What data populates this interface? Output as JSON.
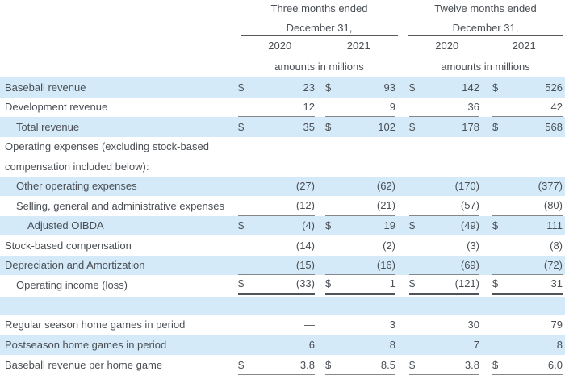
{
  "currency_symbol": "$",
  "colors": {
    "row_highlight": "#d4eaf8",
    "text": "#4a4f55",
    "thin_rule": "#85888b",
    "strong_rule": "#4d545b",
    "header_rule": "#55585c"
  },
  "header": {
    "three_months": {
      "title": "Three months ended",
      "subtitle": "December 31,",
      "years": [
        "2020",
        "2021"
      ],
      "units": "amounts in millions"
    },
    "twelve_months": {
      "title": "Twelve months ended",
      "subtitle": "December 31,",
      "years": [
        "2020",
        "2021"
      ],
      "units": "amounts in millions"
    }
  },
  "table": {
    "rows": [
      {
        "label": "Baseball revenue",
        "indent": 0,
        "bg": "blue",
        "dollar": true,
        "values": [
          "23",
          "93",
          "142",
          "526"
        ],
        "underline": "none"
      },
      {
        "label": "Development revenue",
        "indent": 0,
        "bg": "white",
        "dollar": false,
        "values": [
          "12",
          "9",
          "36",
          "42"
        ],
        "underline": "thin"
      },
      {
        "label": "Total revenue",
        "indent": 1,
        "bg": "blue",
        "dollar": true,
        "values": [
          "35",
          "102",
          "178",
          "568"
        ],
        "underline": "none"
      },
      {
        "label": "Operating expenses (excluding stock-based",
        "indent": 0,
        "bg": "white",
        "dollar": false,
        "values": [
          "",
          "",
          "",
          ""
        ],
        "underline": "none"
      },
      {
        "label": "compensation included below):",
        "indent": 0,
        "bg": "white",
        "dollar": false,
        "values": [
          "",
          "",
          "",
          ""
        ],
        "underline": "none"
      },
      {
        "label": "Other operating expenses",
        "indent": 1,
        "bg": "blue",
        "dollar": false,
        "values": [
          "(27)",
          "(62)",
          "(170)",
          "(377)"
        ],
        "underline": "none"
      },
      {
        "label": "Selling, general and administrative expenses",
        "indent": 1,
        "bg": "white",
        "dollar": false,
        "values": [
          "(12)",
          "(21)",
          "(57)",
          "(80)"
        ],
        "underline": "thin"
      },
      {
        "label": "Adjusted OIBDA",
        "indent": 2,
        "bg": "blue",
        "dollar": true,
        "values": [
          "(4)",
          "19",
          "(49)",
          "111"
        ],
        "underline": "none"
      },
      {
        "label": "Stock-based compensation",
        "indent": 0,
        "bg": "white",
        "dollar": false,
        "values": [
          "(14)",
          "(2)",
          "(3)",
          "(8)"
        ],
        "underline": "none"
      },
      {
        "label": "Depreciation and Amortization",
        "indent": 0,
        "bg": "blue",
        "dollar": false,
        "values": [
          "(15)",
          "(16)",
          "(69)",
          "(72)"
        ],
        "underline": "thin"
      },
      {
        "label": "Operating income (loss)",
        "indent": 1,
        "bg": "white",
        "dollar": true,
        "values": [
          "(33)",
          "1",
          "(121)",
          "31"
        ],
        "underline": "thick"
      },
      {
        "label": "",
        "indent": 0,
        "bg": "blue",
        "dollar": false,
        "values": [
          "",
          "",
          "",
          ""
        ],
        "underline": "none",
        "blank": true
      },
      {
        "label": "Regular season home games in period",
        "indent": 0,
        "bg": "white",
        "dollar": false,
        "values": [
          "—",
          "3",
          "30",
          "79"
        ],
        "underline": "none",
        "tall": true
      },
      {
        "label": "Postseason home games in period",
        "indent": 0,
        "bg": "blue",
        "dollar": false,
        "values": [
          "6",
          "8",
          "7",
          "8"
        ],
        "underline": "none",
        "tall": true
      },
      {
        "label": "Baseball revenue per home game",
        "indent": 0,
        "bg": "white",
        "dollar": true,
        "values": [
          "3.8",
          "8.5",
          "3.8",
          "6.0"
        ],
        "underline": "thin",
        "tall": true
      }
    ]
  }
}
